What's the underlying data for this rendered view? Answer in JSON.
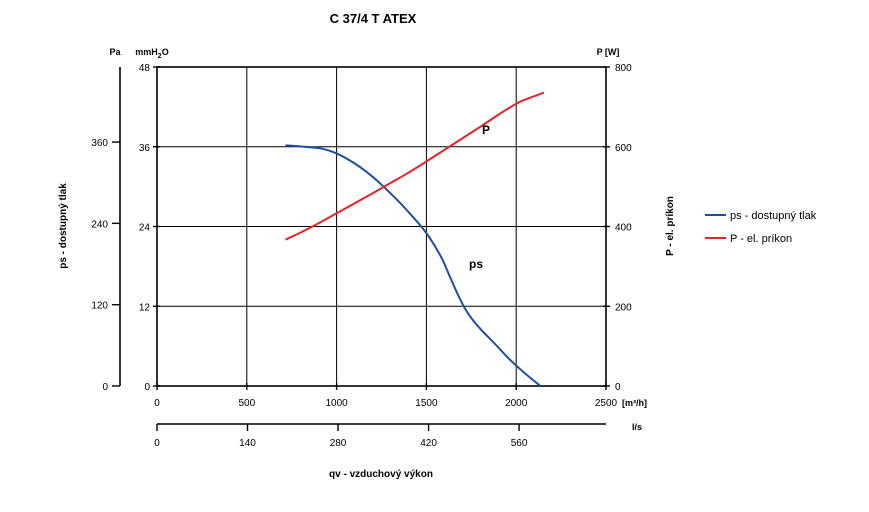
{
  "chart_data": {
    "type": "line",
    "title": "C 37/4 T ATEX",
    "x": {
      "unit": "[m³/h]",
      "ticks": [
        0,
        500,
        1000,
        1500,
        2000,
        2500
      ],
      "range": [
        0,
        2500
      ],
      "secondary_unit": "l/s",
      "secondary_ticks": [
        0,
        140,
        280,
        420,
        560
      ],
      "xlabel": "qv - vzduchový výkon"
    },
    "y_left": {
      "outer_unit": "Pa",
      "outer_ticks": [
        0,
        120,
        240,
        360
      ],
      "inner_unit": "mmH",
      "inner_unit_sub": "2",
      "inner_unit_tail": "O",
      "inner_ticks": [
        0,
        12,
        24,
        36,
        48
      ],
      "range_mmH2O": [
        0,
        48
      ],
      "ylabel": "ps - dostupný tlak"
    },
    "y_right": {
      "unit": "P [W]",
      "ticks": [
        0,
        200,
        400,
        600,
        800
      ],
      "range": [
        0,
        800
      ],
      "ylabel": "P - el. príkon"
    },
    "grid": true,
    "legend_position": "right",
    "series": [
      {
        "name": "ps - dostupný tlak",
        "label": "ps",
        "axis": "left_mmH2O",
        "color": "#1f4fa0",
        "points": [
          [
            720,
            36.2
          ],
          [
            820,
            36.0
          ],
          [
            920,
            35.7
          ],
          [
            1000,
            35.0
          ],
          [
            1100,
            33.5
          ],
          [
            1200,
            31.5
          ],
          [
            1300,
            29.0
          ],
          [
            1400,
            26.2
          ],
          [
            1500,
            23.0
          ],
          [
            1580,
            19.5
          ],
          [
            1630,
            16.5
          ],
          [
            1680,
            13.5
          ],
          [
            1730,
            11.0
          ],
          [
            1800,
            8.6
          ],
          [
            1880,
            6.4
          ],
          [
            1960,
            4.1
          ],
          [
            2040,
            2.1
          ],
          [
            2130,
            0.1
          ]
        ]
      },
      {
        "name": "P - el. príkon",
        "label": "P",
        "axis": "right_W",
        "color": "#e1262a",
        "points": [
          [
            720,
            368
          ],
          [
            800,
            385
          ],
          [
            900,
            408
          ],
          [
            1000,
            433
          ],
          [
            1100,
            458
          ],
          [
            1200,
            483
          ],
          [
            1300,
            509
          ],
          [
            1400,
            535
          ],
          [
            1500,
            563
          ],
          [
            1600,
            592
          ],
          [
            1700,
            621
          ],
          [
            1800,
            650
          ],
          [
            1900,
            680
          ],
          [
            2000,
            708
          ],
          [
            2060,
            720
          ],
          [
            2150,
            735
          ]
        ]
      }
    ]
  }
}
